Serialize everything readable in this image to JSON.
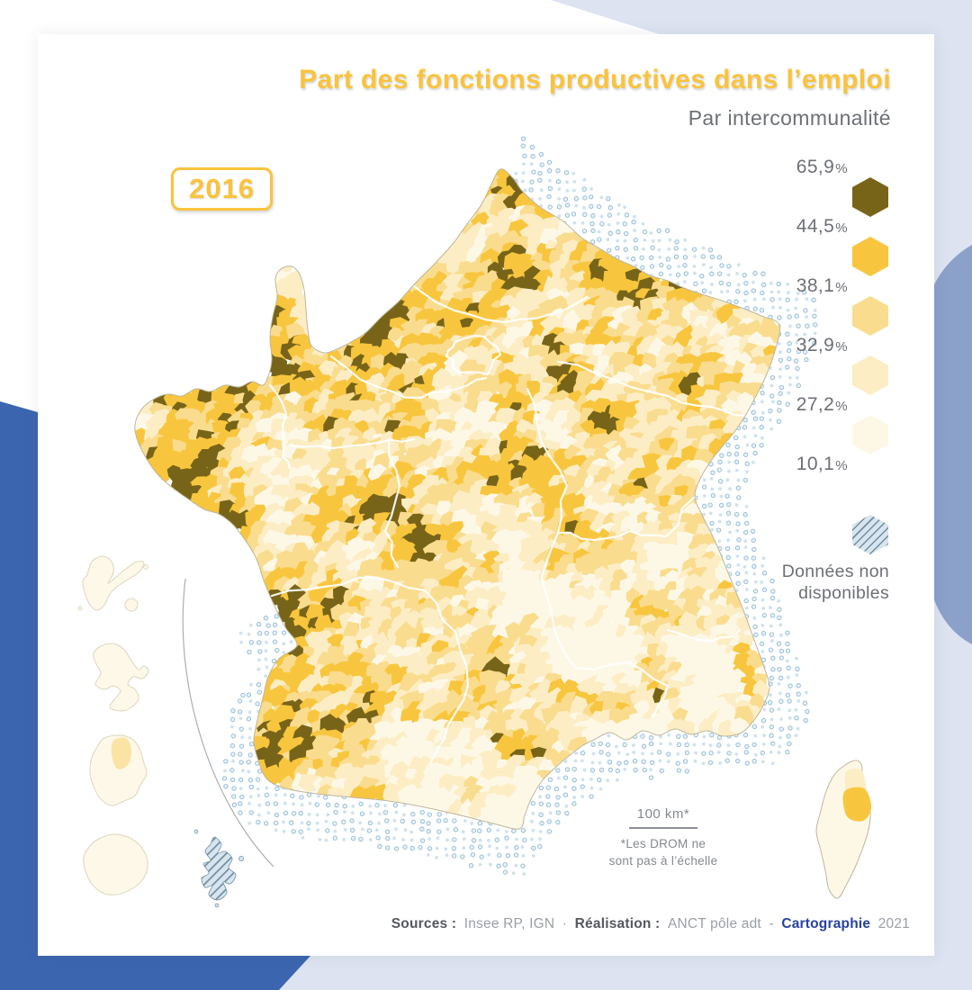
{
  "header": {
    "title": "Part des fonctions productives dans l’emploi",
    "subtitle": "Par intercommunalité"
  },
  "badge": {
    "year": "2016"
  },
  "legend": {
    "breaks": [
      "65,9",
      "44,5",
      "38,1",
      "32,9",
      "27,2",
      "10,1"
    ],
    "unit": "%",
    "no_data_line1": "Données non",
    "no_data_line2": "disponibles"
  },
  "scalebar": {
    "label": "100 km*",
    "note_line1": "*Les DROM ne",
    "note_line2": "sont pas à l’échelle"
  },
  "footer": {
    "sources_label": "Sources :",
    "sources_value": "Insee RP, IGN",
    "separator": "·",
    "realisation_label": "Réalisation :",
    "realisation_value": "ANCT pôle adt",
    "dash": "-",
    "carto_label": "Cartographie",
    "carto_year": "2021"
  },
  "theme": {
    "card_bg": "#ffffff",
    "royal_blue": "#3b66af",
    "periwinkle": "#dde3f0",
    "slate_blue": "#8ba1c9",
    "title_gold": "#f9c33d",
    "text_gray": "#6d7076",
    "text_gray_light": "#84888f",
    "footer_label": "#55585f",
    "footer_value": "#9a9ea6",
    "footer_navy": "#27429e"
  },
  "map": {
    "palette": [
      "#786418",
      "#f8c63e",
      "#fadc8e",
      "#fcedc4",
      "#fdf8e6"
    ],
    "region_border": "#ffffff",
    "coast_stroke": "#bdb69c",
    "no_data_fill": "#d8e5ee",
    "no_data_hatch": "#708da2",
    "dot_fill": "#cfe2ef",
    "dot_ring_fill": "#e8f2f8",
    "dot_stroke": "#8fb9d4",
    "island_fill": "#fdf8e8",
    "island_stroke": "#ddd5bd",
    "guyane_patch": "#fbe3a4",
    "corsica_gold": "#f8c63e",
    "corsica_pale": "#fcedc4",
    "arc_stroke": "#aaaeb5"
  }
}
